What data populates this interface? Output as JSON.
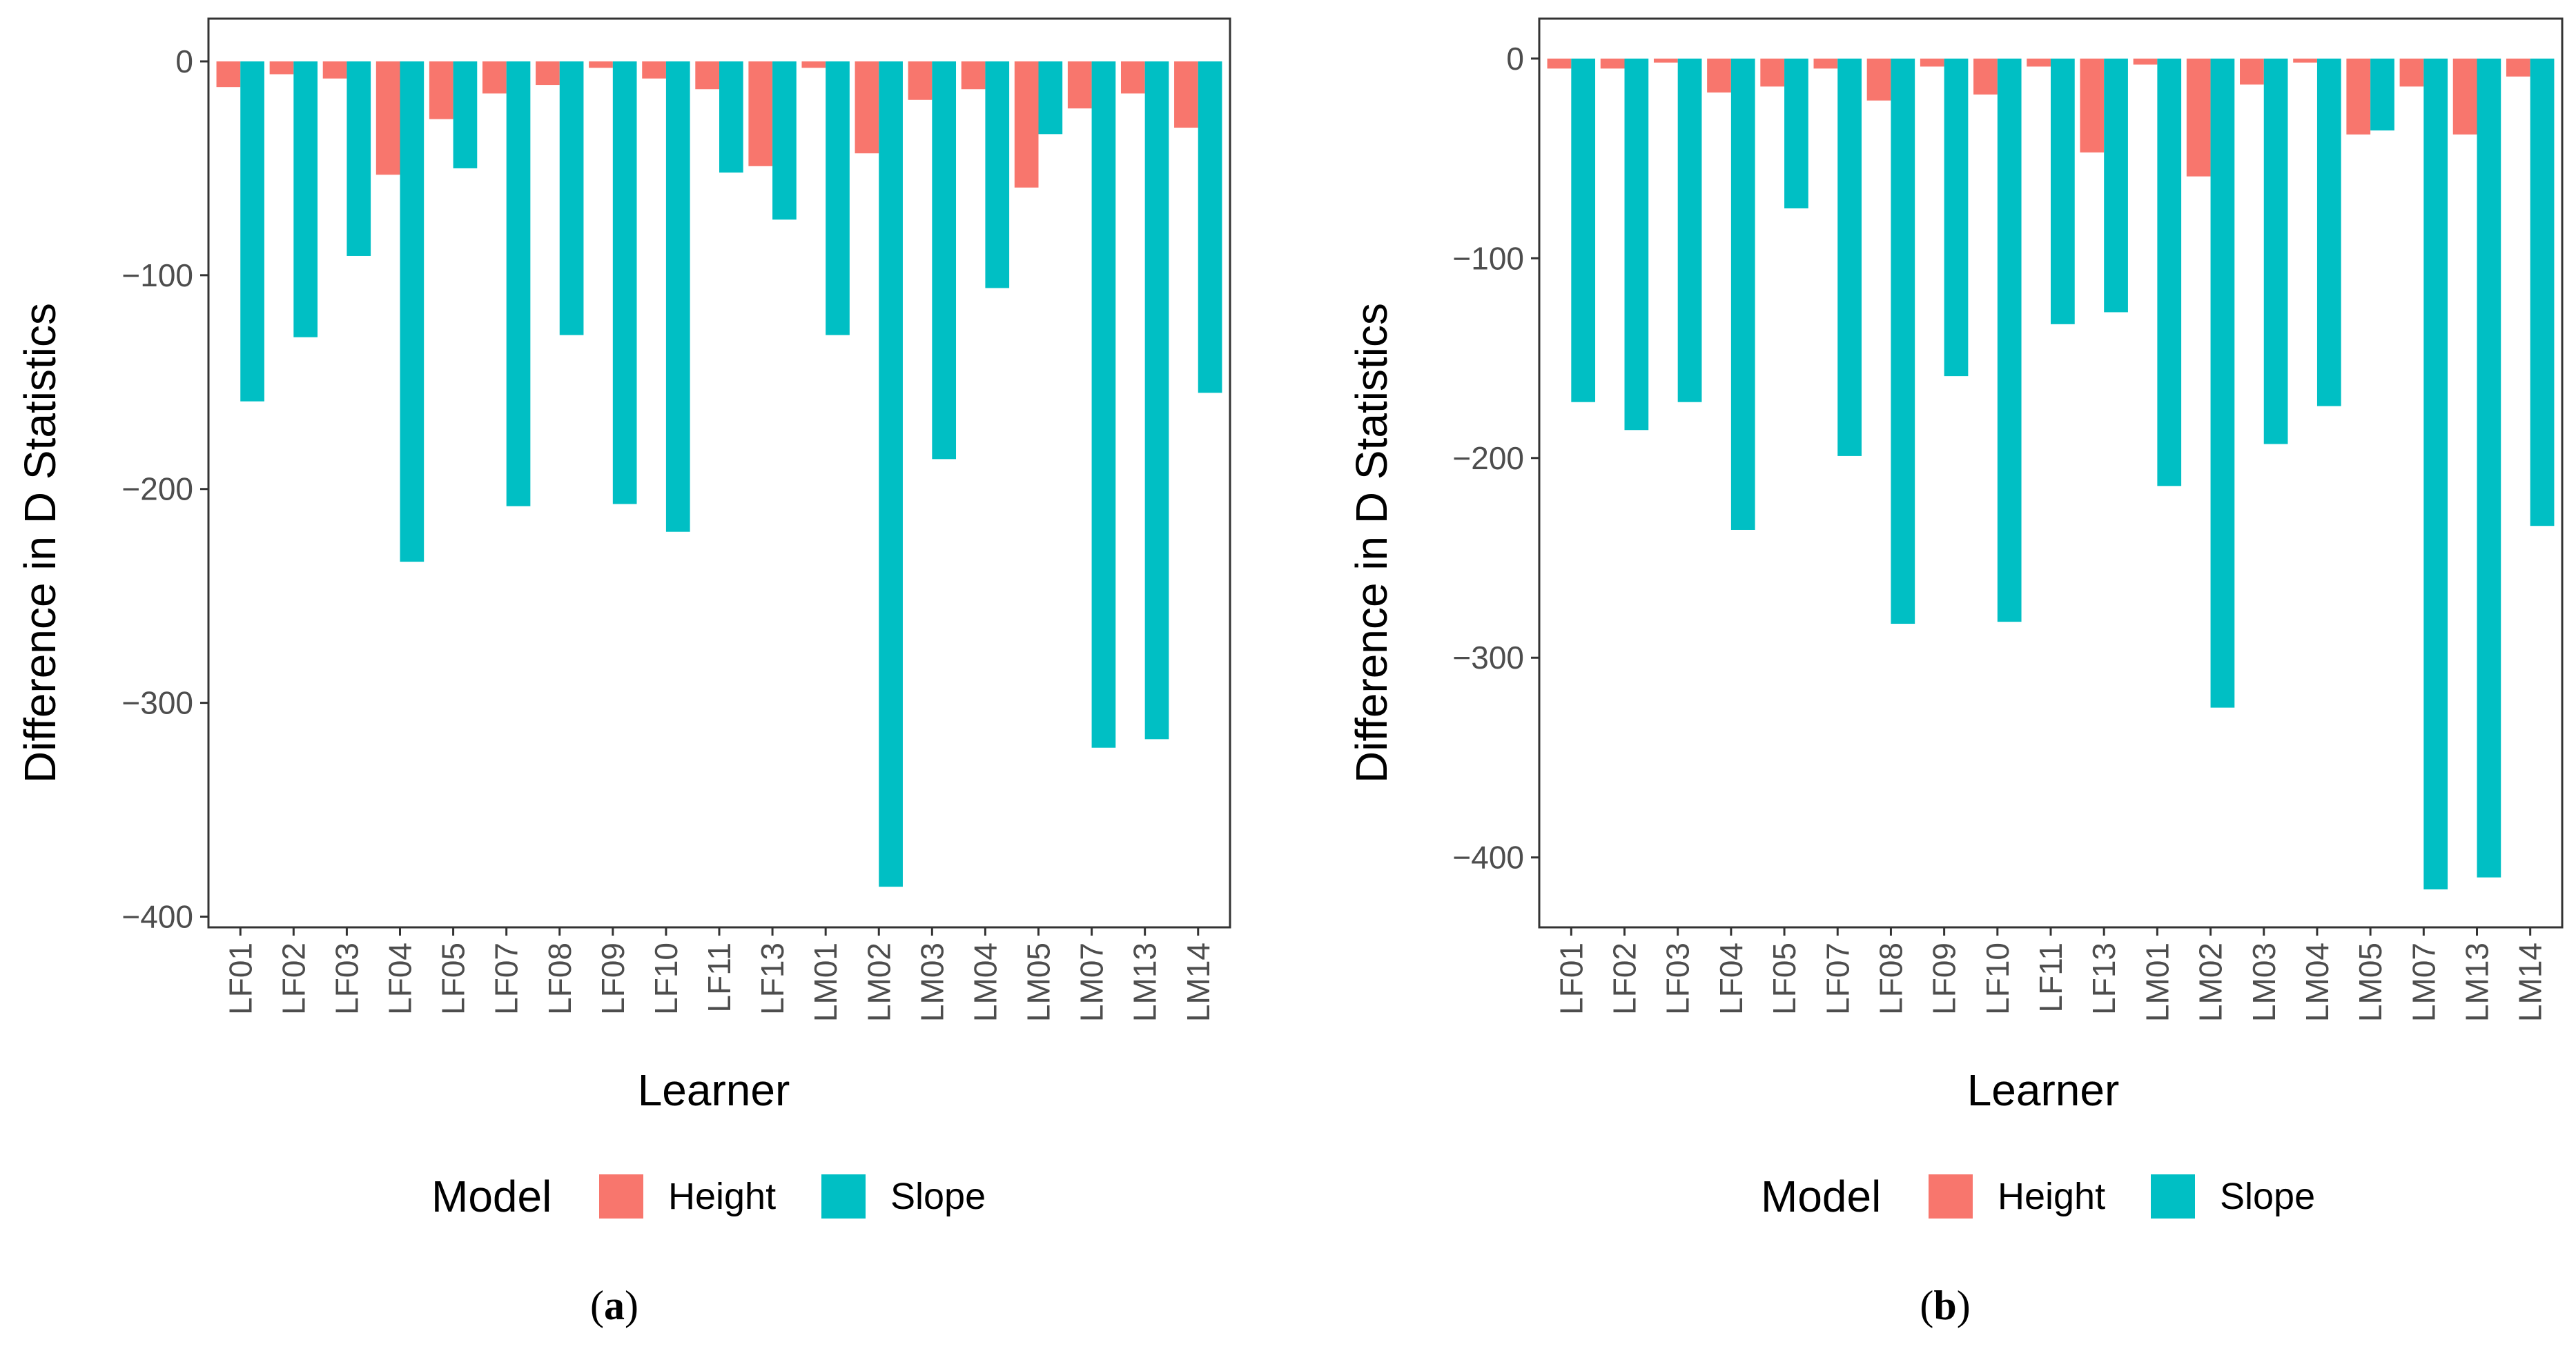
{
  "colors": {
    "height": "#F8766D",
    "slope": "#00BFC4",
    "panel_border": "#333333",
    "tick": "#4d4d4d"
  },
  "legend": {
    "title": "Model",
    "entries": [
      "Height",
      "Slope"
    ]
  },
  "captions": [
    {
      "open": "(",
      "letter": "a",
      "close": ")"
    },
    {
      "open": "(",
      "letter": "b",
      "close": ")"
    }
  ],
  "chart_data": [
    {
      "type": "bar",
      "title": "",
      "xlabel": "Learner",
      "ylabel": "Difference in D Statistics",
      "ylim": [
        -405,
        20
      ],
      "yticks": [
        0,
        -100,
        -200,
        -300,
        -400
      ],
      "ytick_labels": [
        "0",
        "−100",
        "−200",
        "−300",
        "−400"
      ],
      "categories": [
        "LF01",
        "LF02",
        "LF03",
        "LF04",
        "LF05",
        "LF07",
        "LF08",
        "LF09",
        "LF10",
        "LF11",
        "LF13",
        "LM01",
        "LM02",
        "LM03",
        "LM04",
        "LM05",
        "LM07",
        "LM13",
        "LM14"
      ],
      "series": [
        {
          "name": "Height",
          "values": [
            -12,
            -6,
            -8,
            -53,
            -27,
            -15,
            -11,
            -3,
            -8,
            -13,
            -49,
            -3,
            -43,
            -18,
            -13,
            -59,
            -22,
            -15,
            -31
          ]
        },
        {
          "name": "Slope",
          "values": [
            -159,
            -129,
            -91,
            -234,
            -50,
            -208,
            -128,
            -207,
            -220,
            -52,
            -74,
            -128,
            -386,
            -186,
            -106,
            -34,
            -321,
            -317,
            -155
          ]
        }
      ]
    },
    {
      "type": "bar",
      "title": "",
      "xlabel": "Learner",
      "ylabel": "Difference in D Statistics",
      "ylim": [
        -435,
        20
      ],
      "yticks": [
        0,
        -100,
        -200,
        -300,
        -400
      ],
      "ytick_labels": [
        "0",
        "−100",
        "−200",
        "−300",
        "−400"
      ],
      "categories": [
        "LF01",
        "LF02",
        "LF03",
        "LF04",
        "LF05",
        "LF07",
        "LF08",
        "LF09",
        "LF10",
        "LF11",
        "LF13",
        "LM01",
        "LM02",
        "LM03",
        "LM04",
        "LM05",
        "LM07",
        "LM13",
        "LM14"
      ],
      "series": [
        {
          "name": "Height",
          "values": [
            -5,
            -5,
            -2,
            -17,
            -14,
            -5,
            -21,
            -4,
            -18,
            -4,
            -47,
            -3,
            -59,
            -13,
            -2,
            -38,
            -14,
            -38,
            -9
          ]
        },
        {
          "name": "Slope",
          "values": [
            -172,
            -186,
            -172,
            -236,
            -75,
            -199,
            -283,
            -159,
            -282,
            -133,
            -127,
            -214,
            -325,
            -193,
            -174,
            -36,
            -416,
            -410,
            -234
          ]
        }
      ]
    }
  ]
}
